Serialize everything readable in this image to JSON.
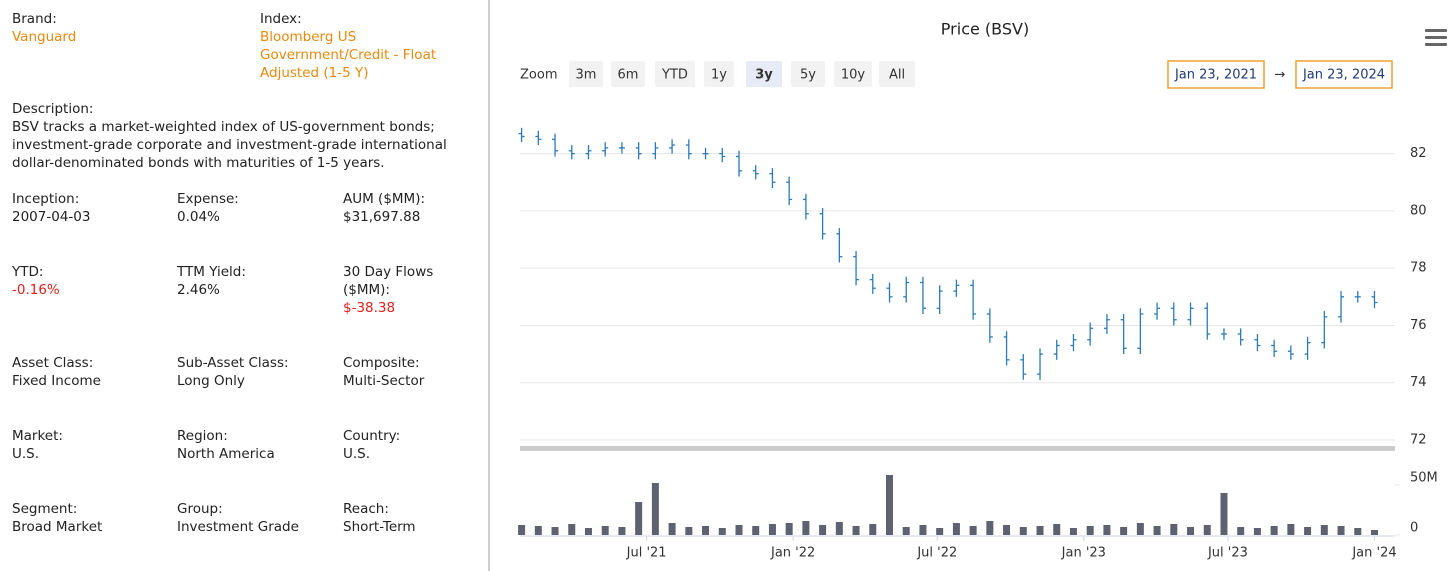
{
  "panel": {
    "rows": [
      [
        {
          "label": "Brand:",
          "value": "Vanguard",
          "color": "#e8890c"
        },
        {
          "label": "Index:",
          "value": "Bloomberg US Government/Credit - Float Adjusted (1-5 Y)",
          "color": "#e8890c"
        }
      ],
      [
        {
          "label": "Inception:",
          "value": "2007-04-03"
        },
        {
          "label": "Expense:",
          "value": "0.04%"
        },
        {
          "label": "AUM ($MM):",
          "value": "$31,697.88"
        }
      ],
      [
        {
          "label": "YTD:",
          "value": "-0.16%",
          "color": "#e0201b"
        },
        {
          "label": "TTM Yield:",
          "value": "2.46%"
        },
        {
          "label": "30 Day Flows ($MM):",
          "value": "$-38.38",
          "color": "#e0201b"
        }
      ],
      [
        {
          "label": "Asset Class:",
          "value": "Fixed Income"
        },
        {
          "label": "Sub-Asset Class:",
          "value": "Long Only"
        },
        {
          "label": "Composite:",
          "value": "Multi-Sector"
        }
      ],
      [
        {
          "label": "Market:",
          "value": "U.S."
        },
        {
          "label": "Region:",
          "value": "North America"
        },
        {
          "label": "Country:",
          "value": "U.S."
        }
      ],
      [
        {
          "label": "Segment:",
          "value": "Broad Market"
        },
        {
          "label": "Group:",
          "value": "Investment Grade"
        },
        {
          "label": "Reach:",
          "value": "Short-Term"
        }
      ]
    ],
    "description": {
      "label": "Description:",
      "value": "BSV tracks a market-weighted index of US-government bonds; investment-grade corporate and investment-grade international dollar-denominated bonds with maturities of 1-5 years."
    }
  },
  "range_selector": {
    "label": "Zoom",
    "buttons": [
      "3m",
      "6m",
      "YTD",
      "1y",
      "3y",
      "5y",
      "10y",
      "All"
    ],
    "selected": 4,
    "from": "Jan 23, 2021",
    "arrow": "→",
    "to": "Jan 23, 2024"
  },
  "chart_data": {
    "type": "ohlc",
    "title": "Price (BSV)",
    "color": "#2b7bba",
    "x": [
      "2021-01-25",
      "2021-02-15",
      "2021-03-08",
      "2021-03-29",
      "2021-04-19",
      "2021-05-10",
      "2021-05-31",
      "2021-06-21",
      "2021-07-12",
      "2021-08-02",
      "2021-08-23",
      "2021-09-13",
      "2021-10-04",
      "2021-10-25",
      "2021-11-15",
      "2021-12-06",
      "2021-12-27",
      "2022-01-17",
      "2022-02-07",
      "2022-02-28",
      "2022-03-21",
      "2022-04-11",
      "2022-05-02",
      "2022-05-23",
      "2022-06-13",
      "2022-07-04",
      "2022-07-25",
      "2022-08-15",
      "2022-09-05",
      "2022-09-26",
      "2022-10-17",
      "2022-11-07",
      "2022-11-28",
      "2022-12-19",
      "2023-01-09",
      "2023-01-30",
      "2023-02-20",
      "2023-03-13",
      "2023-04-03",
      "2023-04-24",
      "2023-05-15",
      "2023-06-05",
      "2023-06-26",
      "2023-07-17",
      "2023-08-07",
      "2023-08-28",
      "2023-09-18",
      "2023-10-09",
      "2023-10-30",
      "2023-11-20",
      "2023-12-11",
      "2024-01-01"
    ],
    "open": [
      82.7,
      82.6,
      82.5,
      82.1,
      82.0,
      82.1,
      82.2,
      82.2,
      82.0,
      82.2,
      82.3,
      82.0,
      82.0,
      81.9,
      81.4,
      81.3,
      81.0,
      80.4,
      79.9,
      79.2,
      78.4,
      77.6,
      77.3,
      77.0,
      77.5,
      76.6,
      77.2,
      77.4,
      76.4,
      75.6,
      74.8,
      74.3,
      75.0,
      75.3,
      75.5,
      75.9,
      76.2,
      75.2,
      76.4,
      76.6,
      76.2,
      76.6,
      75.7,
      75.7,
      75.5,
      75.3,
      75.1,
      75.0,
      75.4,
      76.3,
      77.0,
      77.0
    ],
    "high": [
      82.9,
      82.8,
      82.7,
      82.3,
      82.3,
      82.4,
      82.4,
      82.4,
      82.4,
      82.5,
      82.5,
      82.2,
      82.2,
      82.1,
      81.6,
      81.5,
      81.2,
      80.6,
      80.1,
      79.4,
      78.6,
      77.8,
      77.5,
      77.7,
      77.7,
      77.4,
      77.6,
      77.6,
      76.6,
      75.8,
      75.0,
      75.2,
      75.5,
      75.7,
      76.1,
      76.4,
      76.4,
      76.6,
      76.8,
      76.8,
      76.8,
      76.8,
      75.9,
      75.9,
      75.7,
      75.5,
      75.3,
      75.6,
      76.5,
      77.2,
      77.2,
      77.2
    ],
    "low": [
      82.4,
      82.3,
      81.9,
      81.8,
      81.8,
      81.9,
      82.0,
      81.8,
      81.8,
      82.0,
      81.8,
      81.8,
      81.7,
      81.2,
      81.1,
      80.8,
      80.2,
      79.7,
      79.0,
      78.2,
      77.4,
      77.1,
      76.8,
      76.8,
      76.4,
      76.4,
      77.0,
      76.2,
      75.4,
      74.6,
      74.1,
      74.1,
      74.8,
      75.1,
      75.3,
      75.7,
      75.0,
      75.0,
      76.2,
      76.0,
      76.0,
      75.5,
      75.5,
      75.3,
      75.1,
      74.9,
      74.8,
      74.8,
      75.2,
      76.1,
      76.8,
      76.6
    ],
    "close": [
      82.6,
      82.5,
      82.1,
      82.0,
      82.1,
      82.2,
      82.2,
      82.0,
      82.2,
      82.3,
      82.0,
      82.0,
      81.9,
      81.4,
      81.3,
      81.0,
      80.4,
      79.9,
      79.2,
      78.4,
      77.6,
      77.3,
      77.0,
      77.5,
      76.6,
      77.2,
      77.4,
      76.4,
      75.6,
      74.8,
      74.3,
      75.0,
      75.3,
      75.5,
      75.9,
      76.2,
      75.2,
      76.4,
      76.6,
      76.2,
      76.6,
      75.7,
      75.7,
      75.5,
      75.3,
      75.1,
      75.0,
      75.4,
      76.3,
      77.0,
      77.0,
      76.8
    ],
    "xlim": [
      "2021-01-23",
      "2024-01-23"
    ],
    "xticks": [
      {
        "value": "2021-07-01",
        "label": "Jul '21"
      },
      {
        "value": "2022-01-01",
        "label": "Jan '22"
      },
      {
        "value": "2022-07-01",
        "label": "Jul '22"
      },
      {
        "value": "2023-01-01",
        "label": "Jan '23"
      },
      {
        "value": "2023-07-01",
        "label": "Jul '23"
      },
      {
        "value": "2024-01-01",
        "label": "Jan '24"
      }
    ],
    "ylim": [
      72,
      83
    ],
    "yticks": [
      72,
      74,
      76,
      78,
      80,
      82
    ],
    "grid": true,
    "volume": {
      "type": "bar",
      "color": "#5d6170",
      "values": [
        10000000,
        9000000,
        8000000,
        11000000,
        7000000,
        9000000,
        8000000,
        33000000,
        52000000,
        12000000,
        8000000,
        9000000,
        7000000,
        10000000,
        9000000,
        11000000,
        12000000,
        14000000,
        10000000,
        13000000,
        9000000,
        11000000,
        60000000,
        8000000,
        10000000,
        7000000,
        12000000,
        9000000,
        14000000,
        10000000,
        8000000,
        9000000,
        11000000,
        7000000,
        9000000,
        10000000,
        8000000,
        12000000,
        9000000,
        11000000,
        8000000,
        10000000,
        42000000,
        8000000,
        7000000,
        9000000,
        11000000,
        8000000,
        10000000,
        9000000,
        7000000,
        5000000
      ],
      "ylim": [
        0,
        65000000
      ],
      "yticks": [
        0,
        {
          "value": 50000000,
          "label": "50M"
        }
      ]
    }
  }
}
